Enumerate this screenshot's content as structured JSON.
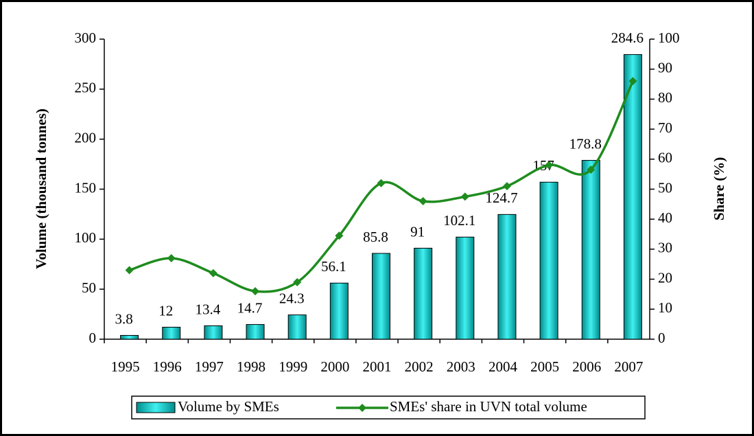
{
  "chart_data": {
    "type": "bar",
    "ylabel": "Volume (thousand tonnes)",
    "y2label": "Share (%)",
    "categories": [
      "1995",
      "1996",
      "1997",
      "1998",
      "1999",
      "2000",
      "2001",
      "2002",
      "2003",
      "2004",
      "2005",
      "2006",
      "2007"
    ],
    "series": [
      {
        "name": "Volume by SMEs",
        "type": "bar",
        "color": "#00c8c8",
        "values": [
          3.8,
          12,
          13.4,
          14.7,
          24.3,
          56.1,
          85.8,
          91,
          102.1,
          124.7,
          157,
          178.8,
          284.6
        ]
      },
      {
        "name": "SMEs' share in UVN total volume",
        "type": "line",
        "axis": "y2",
        "color": "#1e8c1e",
        "values": [
          23,
          27,
          22,
          16,
          19,
          34.5,
          52,
          46,
          47.5,
          51,
          58,
          56.5,
          86
        ]
      }
    ],
    "ylim": [
      0,
      300
    ],
    "yticks": [
      0,
      50,
      100,
      150,
      200,
      250,
      300
    ],
    "y2lim": [
      0,
      100
    ],
    "y2ticks": [
      0,
      10,
      20,
      30,
      40,
      50,
      60,
      70,
      80,
      90,
      100
    ],
    "legend": "bottom"
  }
}
